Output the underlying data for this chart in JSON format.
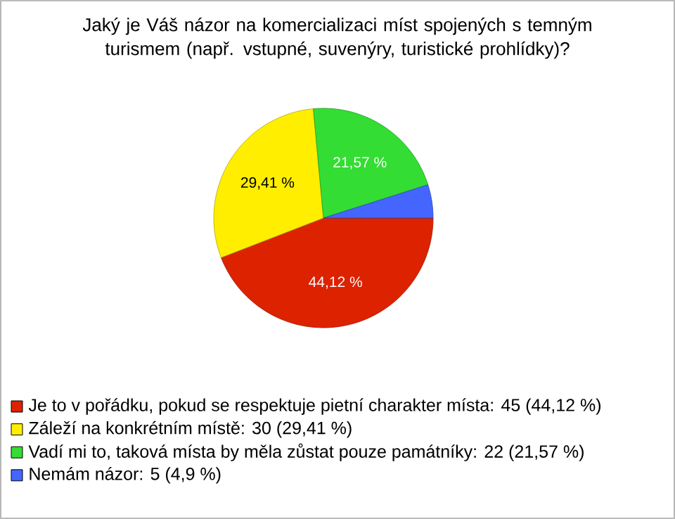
{
  "chart_data": {
    "type": "pie",
    "title": "Jaký je Váš názor na komercializaci míst spojených s temným turismem (např. vstupné, suvenýry, turistické prohlídky)?",
    "categories": [
      "Je to v pořádku, pokud se respektuje pietní charakter místa: 45 (44,12 %)",
      "Záleží na konkrétním místě: 30 (29,41 %)",
      "Vadí mi to, taková místa by měla zůstat pouze památníky: 22 (21,57 %)",
      "Nemám názor: 5 (4,9 %)"
    ],
    "values": [
      44.12,
      29.41,
      21.57,
      4.9
    ],
    "value_labels": [
      "44,12 %",
      "29,41 %",
      "21,57 %",
      null
    ],
    "colors": [
      "#dd2200",
      "#ffee00",
      "#33dd33",
      "#4466ff"
    ],
    "legend": "bottom left"
  }
}
